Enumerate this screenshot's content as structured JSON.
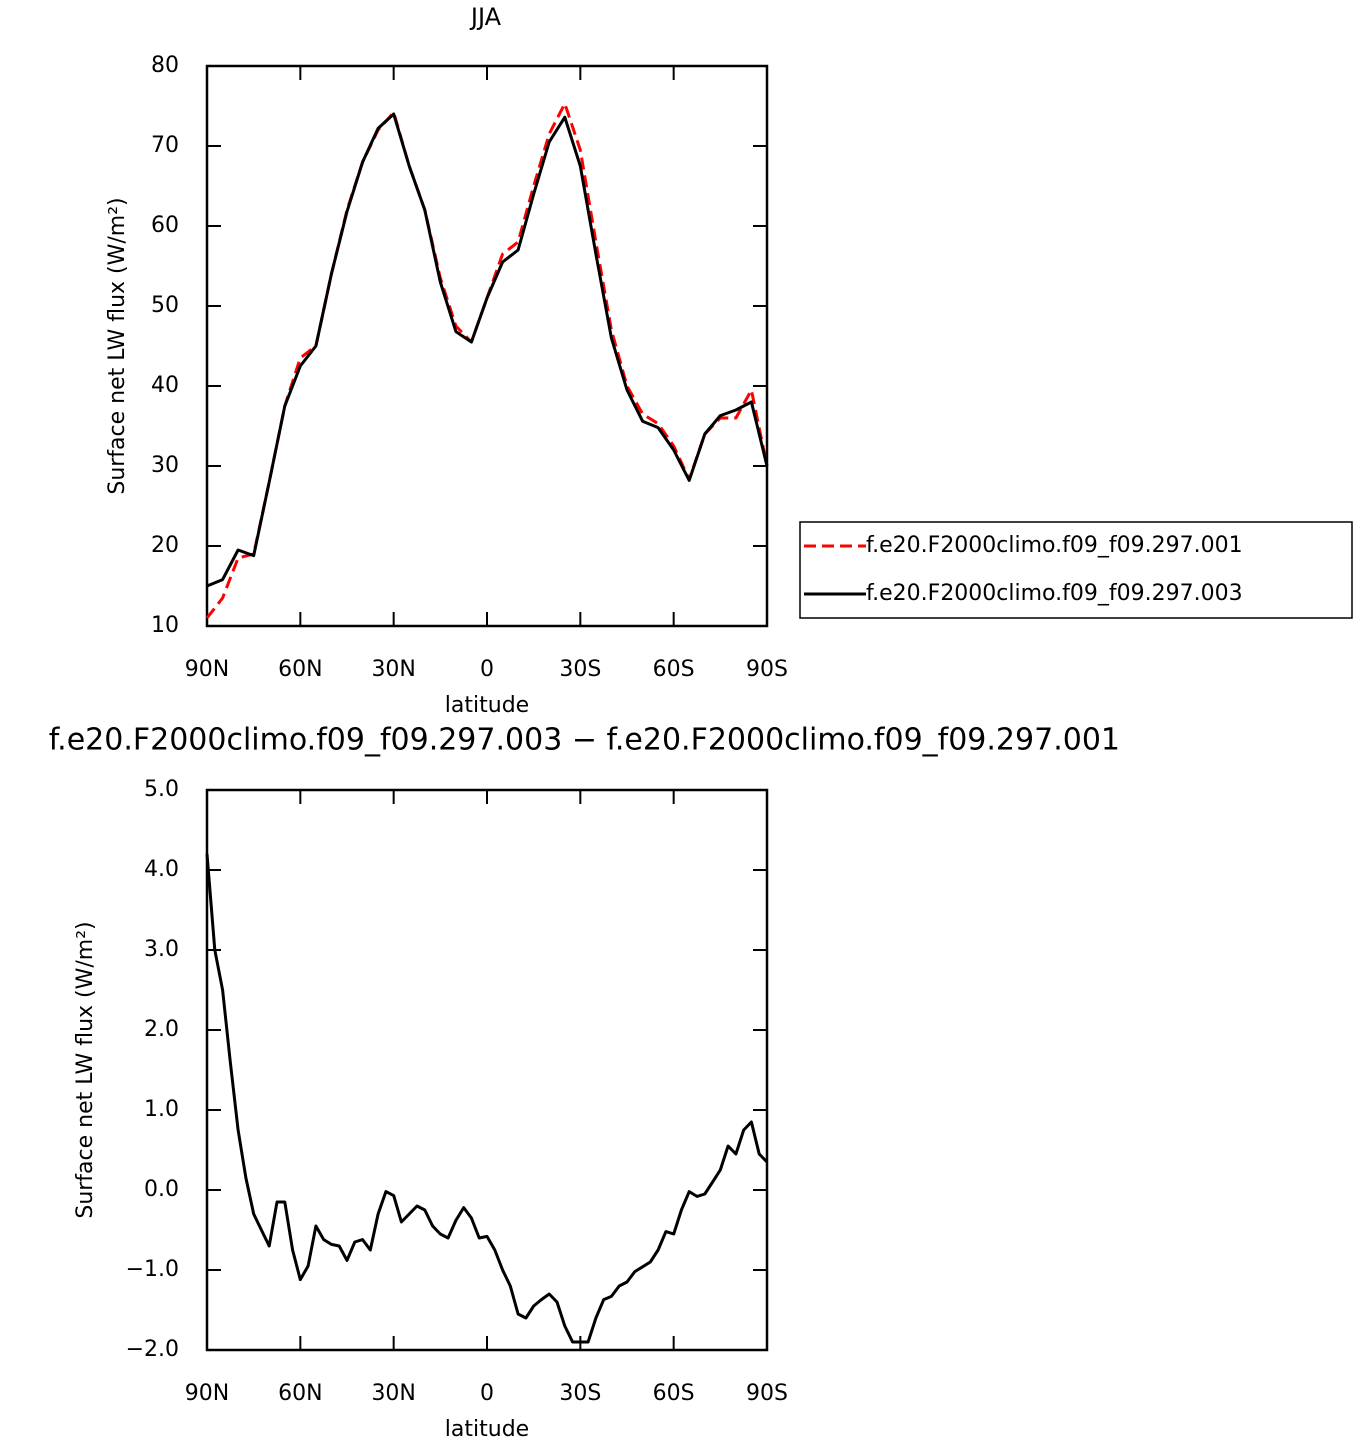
{
  "chart_data": [
    {
      "type": "line",
      "title": "JJA",
      "xlabel": "latitude",
      "ylabel": "Surface net LW flux (W/m²)",
      "x": [
        90,
        85,
        80,
        75,
        70,
        65,
        60,
        55,
        50,
        45,
        40,
        35,
        30,
        25,
        20,
        15,
        10,
        5,
        0,
        -5,
        -10,
        -15,
        -20,
        -25,
        -30,
        -35,
        -40,
        -45,
        -50,
        -55,
        -60,
        -65,
        -70,
        -75,
        -80,
        -85,
        -90
      ],
      "series": [
        {
          "name": "f.e20.F2000climo.f09_f09.297.001",
          "color": "#ff0000",
          "line_style": "dashed",
          "values": [
            11,
            13.5,
            18.5,
            19,
            28,
            37.5,
            43.5,
            45,
            54,
            62,
            68,
            72,
            74.2,
            67.5,
            62,
            53.5,
            47.5,
            45.5,
            51,
            56.5,
            58,
            65,
            71.5,
            75.3,
            69.5,
            58,
            47,
            40,
            36.5,
            35.3,
            32.5,
            28.3,
            34,
            36,
            36,
            39.5,
            30
          ]
        },
        {
          "name": "f.e20.F2000climo.f09_f09.297.003",
          "color": "#000000",
          "line_style": "solid",
          "values": [
            15,
            15.8,
            19.5,
            18.8,
            28,
            37.5,
            42.5,
            45,
            54,
            61.8,
            68,
            72.2,
            74,
            67.5,
            62,
            53,
            46.8,
            45.5,
            51,
            55.5,
            57,
            64,
            70.5,
            73.6,
            67.5,
            56.5,
            46,
            39.5,
            35.6,
            34.8,
            32,
            28.2,
            34,
            36.3,
            37,
            38,
            30
          ]
        }
      ],
      "xlim": [
        90,
        -90
      ],
      "xticks": [
        {
          "value": 90,
          "label": "90N"
        },
        {
          "value": 60,
          "label": "60N"
        },
        {
          "value": 30,
          "label": "30N"
        },
        0,
        {
          "value": -30,
          "label": "30S"
        },
        {
          "value": -60,
          "label": "60S"
        },
        {
          "value": -90,
          "label": "90S"
        }
      ],
      "ylim": [
        10,
        80
      ],
      "yticks": [
        10,
        20,
        30,
        40,
        50,
        60,
        70,
        80
      ],
      "legend": "right"
    },
    {
      "type": "line",
      "title": "f.e20.F2000climo.f09_f09.297.003 − f.e20.F2000climo.f09_f09.297.001",
      "xlabel": "latitude",
      "ylabel": "Surface net LW flux (W/m²)",
      "x": [
        90,
        87.5,
        85,
        82.5,
        80,
        77.5,
        75,
        72.5,
        70,
        67.5,
        65,
        62.5,
        60,
        57.5,
        55,
        52.5,
        50,
        47.5,
        45,
        42.5,
        40,
        37.5,
        35,
        32.5,
        30,
        27.5,
        25,
        22.5,
        20,
        17.5,
        15,
        12.5,
        10,
        7.5,
        5,
        2.5,
        0,
        -2.5,
        -5,
        -7.5,
        -10,
        -12.5,
        -15,
        -17.5,
        -20,
        -22.5,
        -25,
        -27.5,
        -30,
        -32.5,
        -35,
        -37.5,
        -40,
        -42.5,
        -45,
        -47.5,
        -50,
        -52.5,
        -55,
        -57.5,
        -60,
        -62.5,
        -65,
        -67.5,
        -70,
        -72.5,
        -75,
        -77.5,
        -80,
        -82.5,
        -85,
        -87.5,
        -90
      ],
      "series": [
        {
          "color": "#000000",
          "line_style": "solid",
          "values": [
            4.2,
            3.0,
            2.5,
            1.6,
            0.75,
            0.15,
            -0.3,
            -0.5,
            -0.7,
            -0.15,
            -0.15,
            -0.75,
            -1.12,
            -0.95,
            -0.45,
            -0.62,
            -0.68,
            -0.7,
            -0.88,
            -0.65,
            -0.62,
            -0.75,
            -0.3,
            -0.02,
            -0.07,
            -0.4,
            -0.3,
            -0.2,
            -0.25,
            -0.45,
            -0.55,
            -0.6,
            -0.38,
            -0.22,
            -0.35,
            -0.6,
            -0.58,
            -0.75,
            -1.0,
            -1.2,
            -1.55,
            -1.6,
            -1.45,
            -1.37,
            -1.3,
            -1.4,
            -1.7,
            -1.9,
            -1.9,
            -1.9,
            -1.6,
            -1.37,
            -1.33,
            -1.2,
            -1.15,
            -1.02,
            -0.96,
            -0.9,
            -0.75,
            -0.52,
            -0.55,
            -0.25,
            -0.02,
            -0.08,
            -0.05,
            0.1,
            0.25,
            0.55,
            0.45,
            0.75,
            0.85,
            0.45,
            0.35
          ]
        }
      ],
      "xlim": [
        90,
        -90
      ],
      "xticks": [
        {
          "value": 90,
          "label": "90N"
        },
        {
          "value": 60,
          "label": "60N"
        },
        {
          "value": 30,
          "label": "30N"
        },
        0,
        {
          "value": -30,
          "label": "30S"
        },
        {
          "value": -60,
          "label": "60S"
        },
        {
          "value": -90,
          "label": "90S"
        }
      ],
      "ylim": [
        -2,
        5
      ],
      "yticks": [
        {
          "value": -2,
          "label": "−2.0"
        },
        {
          "value": -1,
          "label": "−1.0"
        },
        {
          "value": 0,
          "label": "0.0"
        },
        {
          "value": 1,
          "label": "1.0"
        },
        {
          "value": 2,
          "label": "2.0"
        },
        {
          "value": 3,
          "label": "3.0"
        },
        {
          "value": 4,
          "label": "4.0"
        },
        {
          "value": 5,
          "label": "5.0"
        }
      ]
    }
  ]
}
